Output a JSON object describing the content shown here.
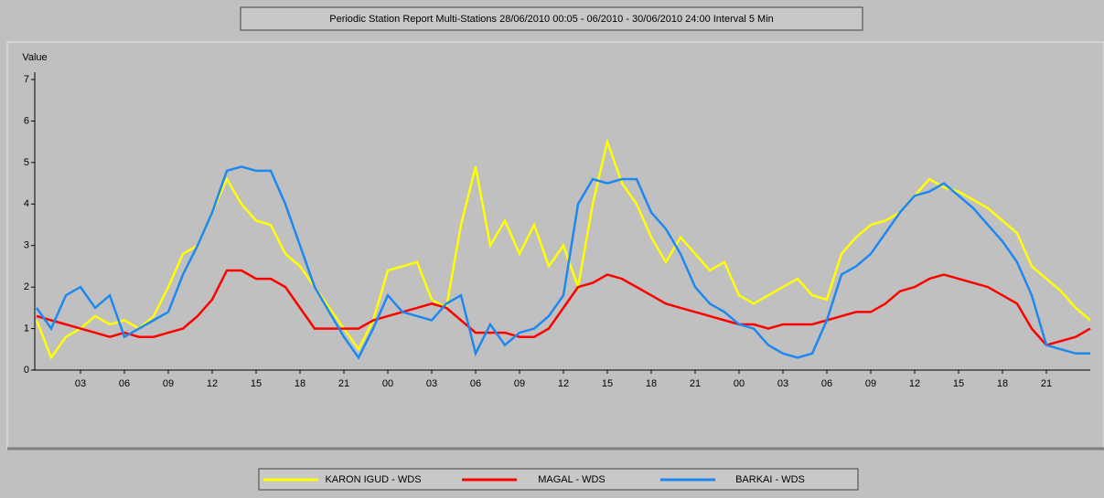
{
  "chart_data": {
    "type": "line",
    "title": "Periodic Station Report Multi-Stations 28/06/2010 00:05 - 06/2010 - 30/06/2010 24:00 Interval 5 Min",
    "y_label": "Value",
    "x": [
      0,
      1,
      2,
      3,
      4,
      5,
      6,
      7,
      8,
      9,
      10,
      11,
      12,
      13,
      14,
      15,
      16,
      17,
      18,
      19,
      20,
      21,
      22,
      23,
      24,
      25,
      26,
      27,
      28,
      29,
      30,
      31,
      32,
      33,
      34,
      35,
      36,
      37,
      38,
      39,
      40,
      41,
      42,
      43,
      44,
      45,
      46,
      47,
      48,
      49,
      50,
      51,
      52,
      53,
      54,
      55,
      56,
      57,
      58,
      59,
      60,
      61,
      62,
      63,
      64,
      65,
      66,
      67,
      68,
      69,
      70,
      71,
      72
    ],
    "series": [
      {
        "name": "KARON IGUD - WDS",
        "color": "#ffff00",
        "values": [
          1.2,
          0.3,
          0.8,
          1.0,
          1.3,
          1.1,
          1.2,
          1.0,
          1.3,
          2.0,
          2.8,
          3.0,
          3.8,
          4.6,
          4.0,
          3.6,
          3.5,
          2.8,
          2.5,
          2.0,
          1.5,
          1.0,
          0.5,
          1.2,
          2.4,
          2.5,
          2.6,
          1.7,
          1.5,
          3.5,
          4.9,
          3.0,
          3.6,
          2.8,
          3.5,
          2.5,
          3.0,
          2.0,
          4.0,
          5.5,
          4.5,
          4.0,
          3.2,
          2.6,
          3.2,
          2.8,
          2.4,
          2.6,
          1.8,
          1.6,
          1.8,
          2.0,
          2.2,
          1.8,
          1.7,
          2.8,
          3.2,
          3.5,
          3.6,
          3.8,
          4.2,
          4.6,
          4.4,
          4.3,
          4.1,
          3.9,
          3.6,
          3.3,
          2.5,
          2.2,
          1.9,
          1.5,
          1.2
        ]
      },
      {
        "name": "MAGAL - WDS",
        "color": "#ff0000",
        "values": [
          1.3,
          1.2,
          1.1,
          1.0,
          0.9,
          0.8,
          0.9,
          0.8,
          0.8,
          0.9,
          1.0,
          1.3,
          1.7,
          2.4,
          2.4,
          2.2,
          2.2,
          2.0,
          1.5,
          1.0,
          1.0,
          1.0,
          1.0,
          1.2,
          1.3,
          1.4,
          1.5,
          1.6,
          1.5,
          1.2,
          0.9,
          0.9,
          0.9,
          0.8,
          0.8,
          1.0,
          1.5,
          2.0,
          2.1,
          2.3,
          2.2,
          2.0,
          1.8,
          1.6,
          1.5,
          1.4,
          1.3,
          1.2,
          1.1,
          1.1,
          1.0,
          1.1,
          1.1,
          1.1,
          1.2,
          1.3,
          1.4,
          1.4,
          1.6,
          1.9,
          2.0,
          2.2,
          2.3,
          2.2,
          2.1,
          2.0,
          1.8,
          1.6,
          1.0,
          0.6,
          0.7,
          0.8,
          1.0
        ]
      },
      {
        "name": "BARKAI - WDS",
        "color": "#1e88f0",
        "values": [
          1.5,
          1.0,
          1.8,
          2.0,
          1.5,
          1.8,
          0.8,
          1.0,
          1.2,
          1.4,
          2.3,
          3.0,
          3.8,
          4.8,
          4.9,
          4.8,
          4.8,
          4.0,
          3.0,
          2.0,
          1.4,
          0.8,
          0.3,
          1.0,
          1.8,
          1.4,
          1.3,
          1.2,
          1.6,
          1.8,
          0.4,
          1.1,
          0.6,
          0.9,
          1.0,
          1.3,
          1.8,
          4.0,
          4.6,
          4.5,
          4.6,
          4.6,
          3.8,
          3.4,
          2.8,
          2.0,
          1.6,
          1.4,
          1.1,
          1.0,
          0.6,
          0.4,
          0.3,
          0.4,
          1.2,
          2.3,
          2.5,
          2.8,
          3.3,
          3.8,
          4.2,
          4.3,
          4.5,
          4.2,
          3.9,
          3.5,
          3.1,
          2.6,
          1.8,
          0.6,
          0.5,
          0.4,
          0.4
        ]
      }
    ],
    "xlim": [
      0,
      72
    ],
    "xticks": [
      {
        "value": 3,
        "label": "03"
      },
      {
        "value": 6,
        "label": "06"
      },
      {
        "value": 9,
        "label": "09"
      },
      {
        "value": 12,
        "label": "12"
      },
      {
        "value": 15,
        "label": "15"
      },
      {
        "value": 18,
        "label": "18"
      },
      {
        "value": 21,
        "label": "21"
      },
      {
        "value": 24,
        "label": "00"
      },
      {
        "value": 27,
        "label": "03"
      },
      {
        "value": 30,
        "label": "06"
      },
      {
        "value": 33,
        "label": "09"
      },
      {
        "value": 36,
        "label": "12"
      },
      {
        "value": 39,
        "label": "15"
      },
      {
        "value": 42,
        "label": "18"
      },
      {
        "value": 45,
        "label": "21"
      },
      {
        "value": 48,
        "label": "00"
      },
      {
        "value": 51,
        "label": "03"
      },
      {
        "value": 54,
        "label": "06"
      },
      {
        "value": 57,
        "label": "09"
      },
      {
        "value": 60,
        "label": "12"
      },
      {
        "value": 63,
        "label": "15"
      },
      {
        "value": 66,
        "label": "18"
      },
      {
        "value": 69,
        "label": "21"
      }
    ],
    "ylim": [
      0,
      7
    ],
    "yticks": [
      0,
      1,
      2,
      3,
      4,
      5,
      6,
      7
    ]
  }
}
